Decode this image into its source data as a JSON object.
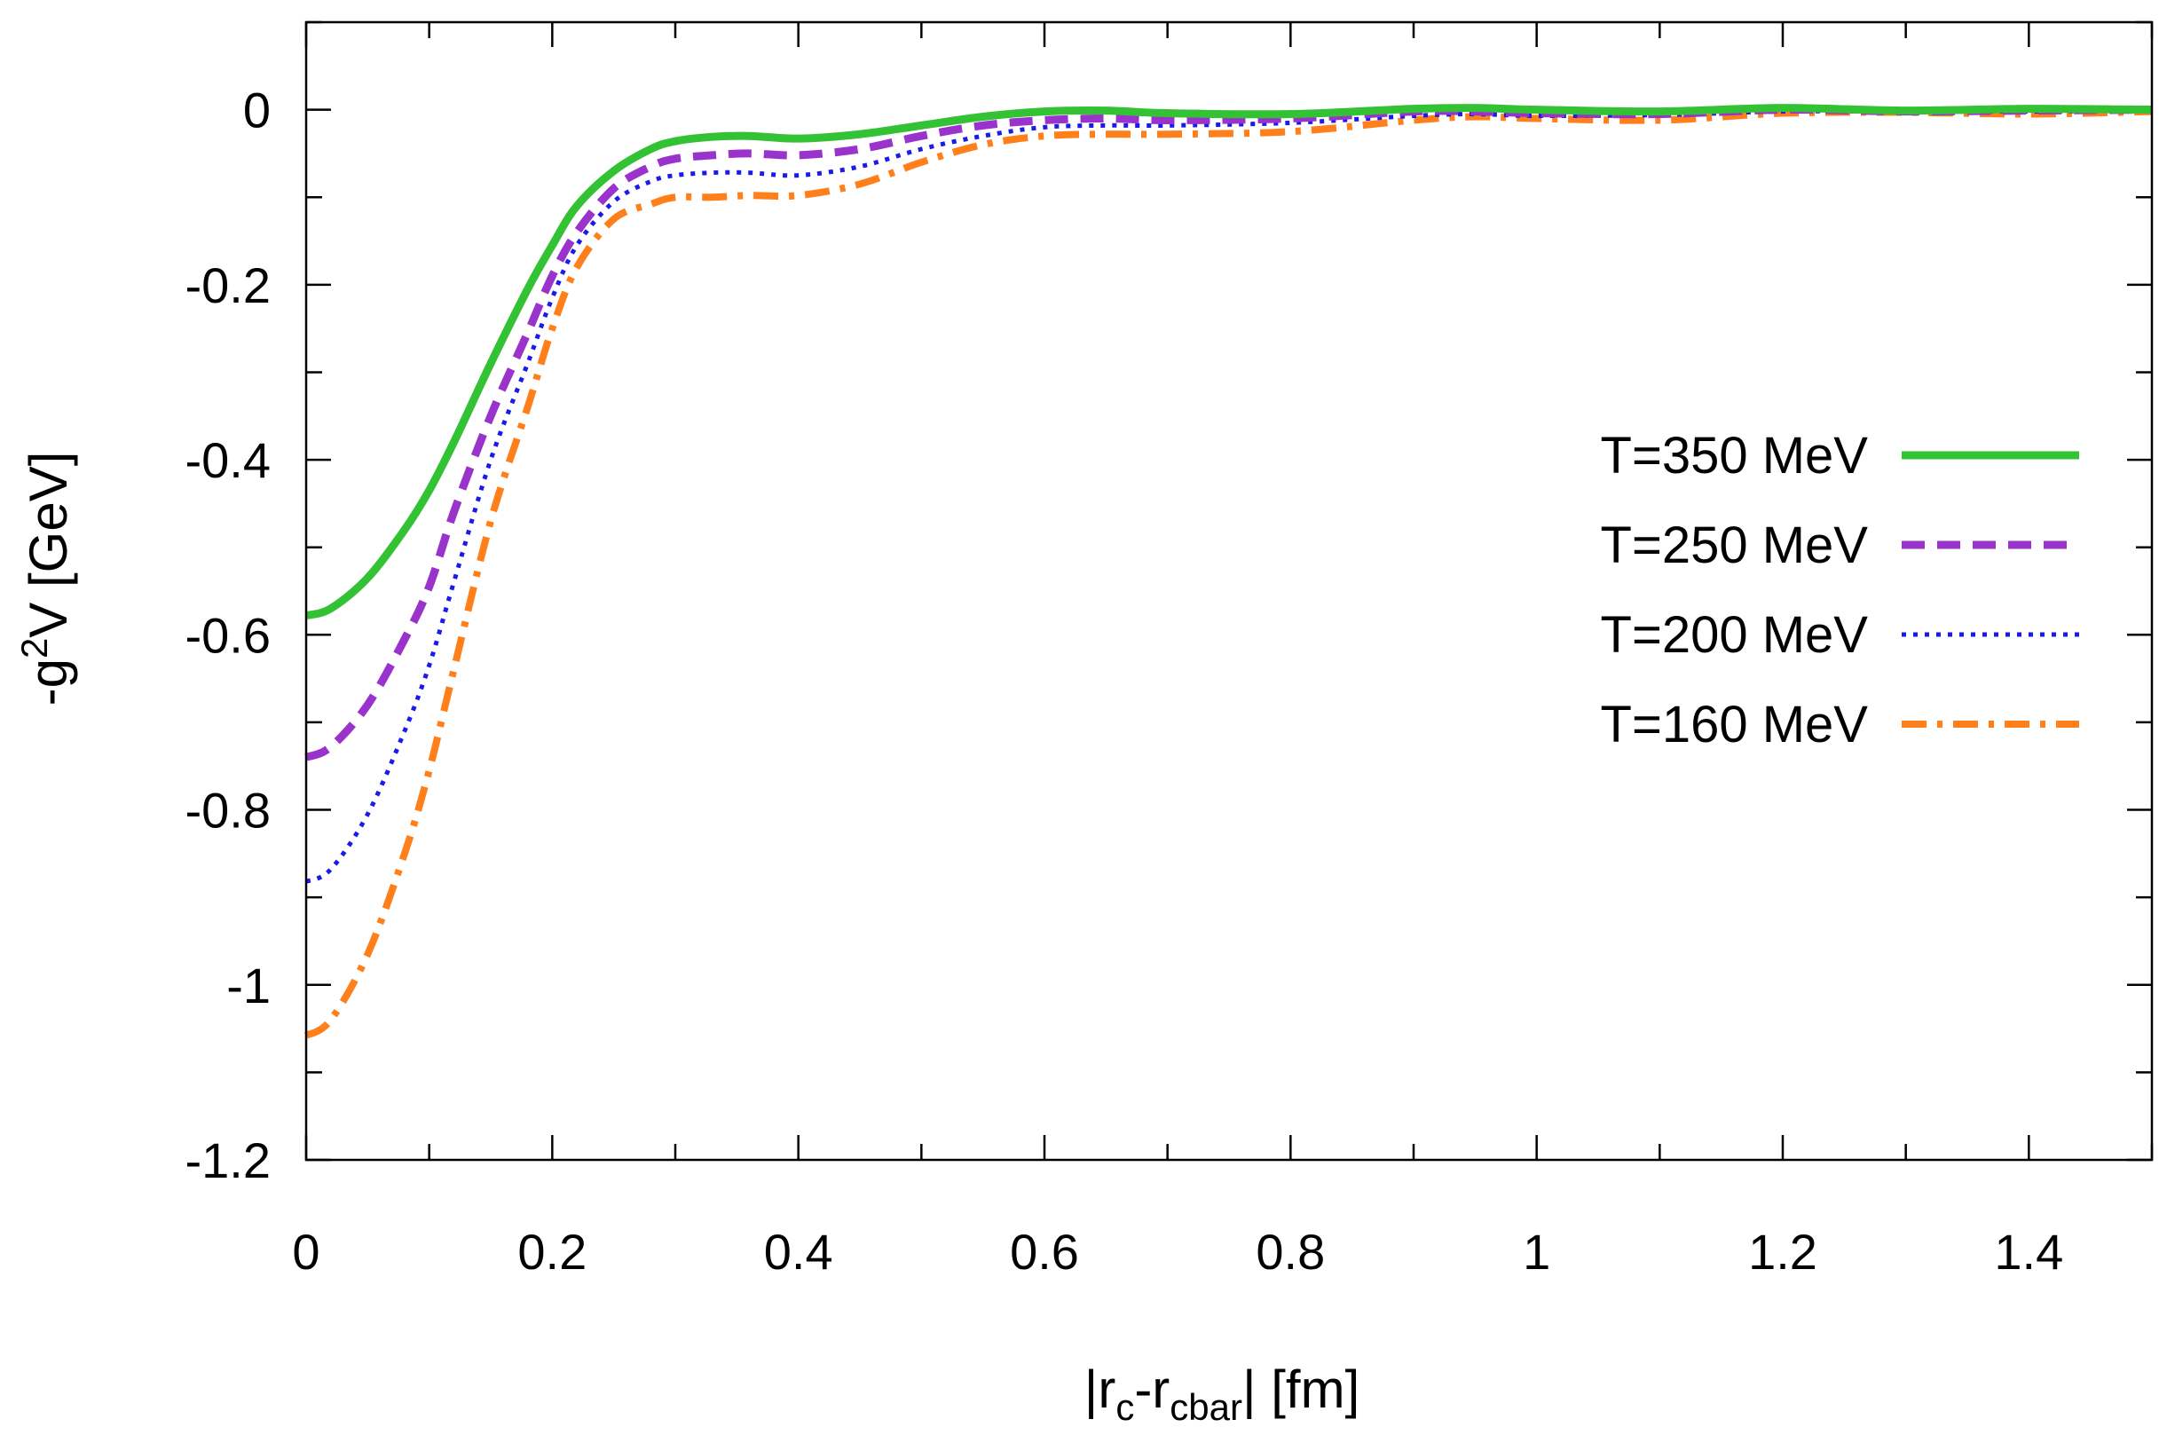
{
  "chart_data": {
    "type": "line",
    "title": "",
    "xlabel": {
      "prefix": "|r",
      "sub1": "c",
      "mid": "-r",
      "sub2": "cbar",
      "suffix": "| [fm]"
    },
    "ylabel": {
      "prefix": "-g",
      "sup": "2",
      "suffix": "V [GeV]"
    },
    "xlim": [
      0,
      1.5
    ],
    "ylim": [
      -1.2,
      0.1
    ],
    "xticks": [
      0,
      0.2,
      0.4,
      0.6,
      0.8,
      1,
      1.2,
      1.4
    ],
    "xtick_labels": [
      "0",
      "0.2",
      "0.4",
      "0.6",
      "0.8",
      "1",
      "1.2",
      "1.4"
    ],
    "xminor_step": 0.1,
    "yticks": [
      0,
      -0.2,
      -0.4,
      -0.6,
      -0.8,
      -1,
      -1.2
    ],
    "ytick_labels": [
      "0",
      "-0.2",
      "-0.4",
      "-0.6",
      "-0.8",
      "-1",
      "-1.2"
    ],
    "yminor_step": 0.1,
    "grid": false,
    "legend_position": "right",
    "series": [
      {
        "name": "T=350 MeV",
        "color": "#33c233",
        "style": "solid",
        "x": [
          0,
          0.02,
          0.05,
          0.08,
          0.1,
          0.12,
          0.15,
          0.18,
          0.2,
          0.22,
          0.25,
          0.28,
          0.3,
          0.33,
          0.36,
          0.4,
          0.45,
          0.5,
          0.55,
          0.6,
          0.65,
          0.7,
          0.8,
          0.9,
          0.95,
          1.0,
          1.1,
          1.2,
          1.3,
          1.4,
          1.5
        ],
        "y": [
          -0.578,
          -0.57,
          -0.535,
          -0.48,
          -0.435,
          -0.38,
          -0.29,
          -0.205,
          -0.155,
          -0.11,
          -0.07,
          -0.045,
          -0.036,
          -0.031,
          -0.03,
          -0.033,
          -0.028,
          -0.018,
          -0.008,
          -0.002,
          -0.001,
          -0.004,
          -0.005,
          0.001,
          0.002,
          0.0,
          -0.002,
          0.002,
          -0.001,
          0.001,
          0.0
        ]
      },
      {
        "name": "T=250 MeV",
        "color": "#9933cc",
        "style": "dashed",
        "x": [
          0,
          0.02,
          0.05,
          0.08,
          0.1,
          0.12,
          0.15,
          0.18,
          0.2,
          0.22,
          0.25,
          0.28,
          0.3,
          0.33,
          0.36,
          0.4,
          0.45,
          0.5,
          0.55,
          0.6,
          0.65,
          0.7,
          0.8,
          0.9,
          0.95,
          1.0,
          1.1,
          1.2,
          1.3,
          1.4,
          1.5
        ],
        "y": [
          -0.74,
          -0.728,
          -0.68,
          -0.605,
          -0.545,
          -0.46,
          -0.35,
          -0.255,
          -0.19,
          -0.14,
          -0.09,
          -0.065,
          -0.056,
          -0.052,
          -0.05,
          -0.052,
          -0.045,
          -0.03,
          -0.018,
          -0.012,
          -0.01,
          -0.012,
          -0.01,
          -0.002,
          -0.002,
          -0.004,
          -0.005,
          0.0,
          -0.002,
          -0.001,
          0.0
        ]
      },
      {
        "name": "T=200 MeV",
        "color": "#1a1aeb",
        "style": "dotted",
        "x": [
          0,
          0.02,
          0.05,
          0.08,
          0.1,
          0.12,
          0.15,
          0.18,
          0.2,
          0.22,
          0.25,
          0.28,
          0.3,
          0.33,
          0.36,
          0.4,
          0.45,
          0.5,
          0.55,
          0.6,
          0.65,
          0.7,
          0.8,
          0.9,
          0.95,
          1.0,
          1.1,
          1.2,
          1.3,
          1.4,
          1.5
        ],
        "y": [
          -0.882,
          -0.868,
          -0.805,
          -0.71,
          -0.635,
          -0.54,
          -0.4,
          -0.29,
          -0.215,
          -0.155,
          -0.105,
          -0.082,
          -0.075,
          -0.072,
          -0.072,
          -0.075,
          -0.065,
          -0.045,
          -0.03,
          -0.02,
          -0.018,
          -0.018,
          -0.015,
          -0.007,
          -0.005,
          -0.007,
          -0.006,
          -0.002,
          -0.002,
          -0.002,
          -0.001
        ]
      },
      {
        "name": "T=160 MeV",
        "color": "#ff7f1a",
        "style": "dashdot",
        "x": [
          0,
          0.02,
          0.05,
          0.08,
          0.1,
          0.12,
          0.15,
          0.18,
          0.2,
          0.22,
          0.25,
          0.28,
          0.3,
          0.33,
          0.36,
          0.4,
          0.45,
          0.5,
          0.55,
          0.6,
          0.65,
          0.7,
          0.8,
          0.9,
          0.95,
          1.0,
          1.1,
          1.2,
          1.3,
          1.4,
          1.5
        ],
        "y": [
          -1.058,
          -1.04,
          -0.965,
          -0.85,
          -0.755,
          -0.64,
          -0.47,
          -0.34,
          -0.25,
          -0.18,
          -0.125,
          -0.108,
          -0.1,
          -0.1,
          -0.098,
          -0.098,
          -0.085,
          -0.06,
          -0.04,
          -0.03,
          -0.028,
          -0.028,
          -0.025,
          -0.012,
          -0.008,
          -0.01,
          -0.012,
          -0.004,
          -0.003,
          -0.005,
          -0.002
        ]
      }
    ]
  }
}
